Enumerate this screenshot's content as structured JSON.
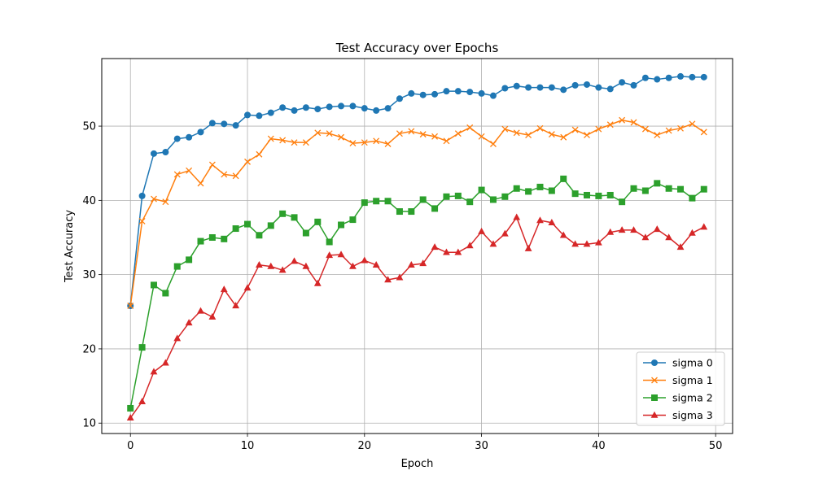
{
  "chart_data": {
    "type": "line",
    "title": "Test Accuracy over Epochs",
    "xlabel": "Epoch",
    "ylabel": "Test Accuracy",
    "xlim": [
      -2.45,
      51.45
    ],
    "ylim": [
      8.6,
      59.1
    ],
    "xticks": [
      0,
      10,
      20,
      30,
      40,
      50
    ],
    "yticks": [
      10,
      20,
      30,
      40,
      50
    ],
    "grid": true,
    "legend_position": "lower-right",
    "x": [
      0,
      1,
      2,
      3,
      4,
      5,
      6,
      7,
      8,
      9,
      10,
      11,
      12,
      13,
      14,
      15,
      16,
      17,
      18,
      19,
      20,
      21,
      22,
      23,
      24,
      25,
      26,
      27,
      28,
      29,
      30,
      31,
      32,
      33,
      34,
      35,
      36,
      37,
      38,
      39,
      40,
      41,
      42,
      43,
      44,
      45,
      46,
      47,
      48,
      49
    ],
    "series": [
      {
        "name": "sigma 0",
        "color": "#1f77b4",
        "marker": "circle",
        "values": [
          25.8,
          40.6,
          46.3,
          46.5,
          48.3,
          48.5,
          49.2,
          50.4,
          50.3,
          50.1,
          51.5,
          51.4,
          51.8,
          52.5,
          52.1,
          52.5,
          52.3,
          52.6,
          52.7,
          52.7,
          52.4,
          52.1,
          52.4,
          53.7,
          54.4,
          54.2,
          54.3,
          54.7,
          54.7,
          54.6,
          54.4,
          54.1,
          55.1,
          55.4,
          55.2,
          55.2,
          55.2,
          54.9,
          55.5,
          55.6,
          55.2,
          55.0,
          55.9,
          55.5,
          56.5,
          56.3,
          56.5,
          56.7,
          56.6,
          56.6
        ]
      },
      {
        "name": "sigma 1",
        "color": "#ff7f0e",
        "marker": "x",
        "values": [
          25.8,
          37.2,
          40.2,
          39.8,
          43.5,
          44.0,
          42.3,
          44.8,
          43.5,
          43.3,
          45.2,
          46.2,
          48.3,
          48.1,
          47.8,
          47.8,
          49.1,
          49.0,
          48.5,
          47.7,
          47.8,
          48.0,
          47.6,
          49.0,
          49.3,
          48.9,
          48.6,
          48.0,
          49.0,
          49.8,
          48.6,
          47.6,
          49.6,
          49.1,
          48.8,
          49.7,
          48.9,
          48.5,
          49.5,
          48.8,
          49.6,
          50.2,
          50.8,
          50.5,
          49.6,
          48.8,
          49.4,
          49.7,
          50.3,
          49.2
        ]
      },
      {
        "name": "sigma 2",
        "color": "#2ca02c",
        "marker": "square",
        "values": [
          12.0,
          20.2,
          28.6,
          27.5,
          31.1,
          32.0,
          34.5,
          35.0,
          34.8,
          36.2,
          36.8,
          35.3,
          36.6,
          38.2,
          37.7,
          35.6,
          37.1,
          34.4,
          36.7,
          37.4,
          39.7,
          39.9,
          39.9,
          38.5,
          38.5,
          40.1,
          38.9,
          40.5,
          40.6,
          39.8,
          41.4,
          40.1,
          40.5,
          41.6,
          41.2,
          41.8,
          41.3,
          42.9,
          40.9,
          40.7,
          40.6,
          40.7,
          39.8,
          41.6,
          41.3,
          42.3,
          41.6,
          41.5,
          40.3,
          41.5
        ]
      },
      {
        "name": "sigma 3",
        "color": "#d62728",
        "marker": "triangle",
        "values": [
          10.7,
          12.9,
          16.9,
          18.1,
          21.4,
          23.5,
          25.1,
          24.3,
          28.0,
          25.8,
          28.2,
          31.3,
          31.1,
          30.6,
          31.8,
          31.1,
          28.8,
          32.6,
          32.7,
          31.1,
          31.9,
          31.3,
          29.3,
          29.6,
          31.3,
          31.5,
          33.7,
          33.0,
          33.0,
          33.9,
          35.8,
          34.1,
          35.5,
          37.7,
          33.5,
          37.3,
          37.0,
          35.3,
          34.1,
          34.1,
          34.3,
          35.7,
          36.0,
          36.0,
          35.0,
          36.1,
          35.0,
          33.7,
          35.6,
          36.4
        ]
      }
    ]
  }
}
